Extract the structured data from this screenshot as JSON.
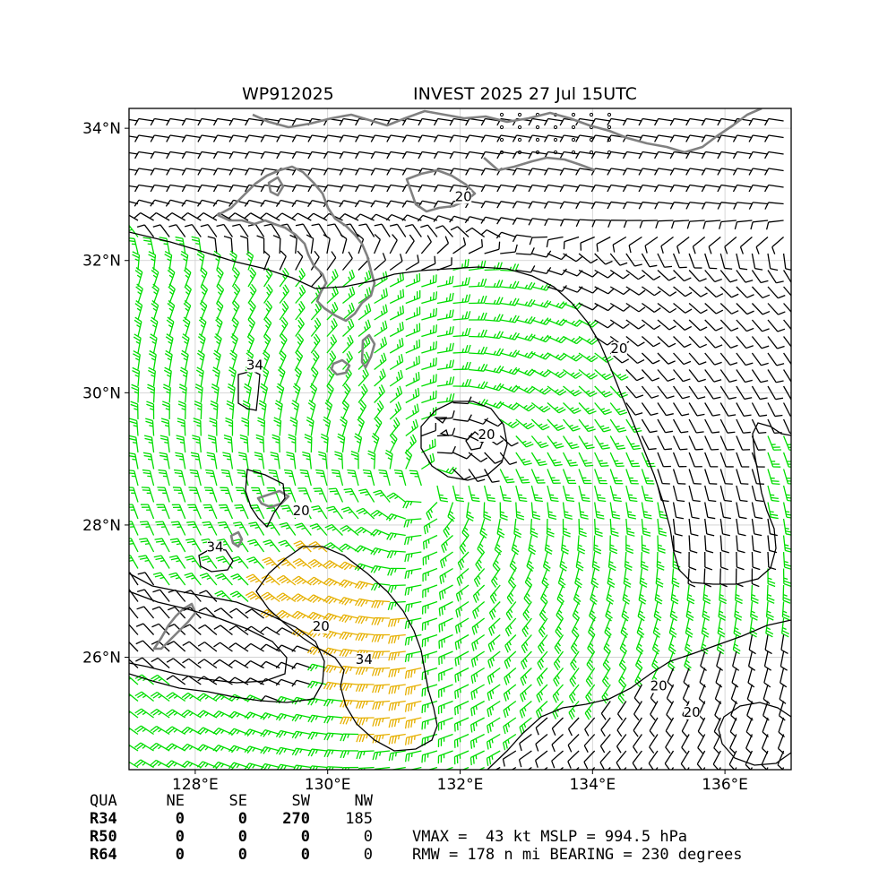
{
  "title": {
    "storm_id": "WP912025",
    "storm_name_time": "INVEST 2025 27 Jul 15UTC"
  },
  "axes": {
    "lat_ticks": [
      "26°N",
      "28°N",
      "30°N",
      "32°N",
      "34°N"
    ],
    "lon_ticks": [
      "128°E",
      "130°E",
      "132°E",
      "134°E",
      "136°E"
    ],
    "lon_range": [
      127.0,
      137.0
    ],
    "lat_range": [
      24.3,
      34.3
    ]
  },
  "contour_labels": [
    {
      "text": "34",
      "lon": 128.9,
      "lat": 30.35
    },
    {
      "text": "20",
      "lon": 129.6,
      "lat": 28.15
    },
    {
      "text": "34",
      "lon": 128.3,
      "lat": 27.6
    },
    {
      "text": "20",
      "lon": 129.9,
      "lat": 26.4
    },
    {
      "text": "34",
      "lon": 130.55,
      "lat": 25.9
    },
    {
      "text": "20",
      "lon": 132.4,
      "lat": 29.3
    },
    {
      "text": "20",
      "lon": 134.4,
      "lat": 30.6
    },
    {
      "text": "20",
      "lon": 132.05,
      "lat": 32.9
    },
    {
      "text": "20",
      "lon": 135.0,
      "lat": 25.5
    },
    {
      "text": "20",
      "lon": 135.5,
      "lat": 25.1
    }
  ],
  "colors": {
    "barb_weak": "#000000",
    "barb_20_34": "#00dd00",
    "barb_34_50": "#e6b000",
    "barb_50plus": "#ff4400",
    "coastline": "#808080",
    "grid": "#cccccc"
  },
  "wind_radii_table": {
    "headers": [
      "QUA",
      "NE",
      "SE",
      "SW",
      "NW"
    ],
    "rows": [
      {
        "label": "R34",
        "values": [
          "0",
          "0",
          "270",
          "185"
        ]
      },
      {
        "label": "R50",
        "values": [
          "0",
          "0",
          "0",
          "0"
        ]
      },
      {
        "label": "R64",
        "values": [
          "0",
          "0",
          "0",
          "0"
        ]
      }
    ]
  },
  "summary": {
    "line1": "VMAX =  43 kt MSLP = 994.5 hPa",
    "line2": "RMW = 178 n mi BEARING = 230 degrees"
  }
}
